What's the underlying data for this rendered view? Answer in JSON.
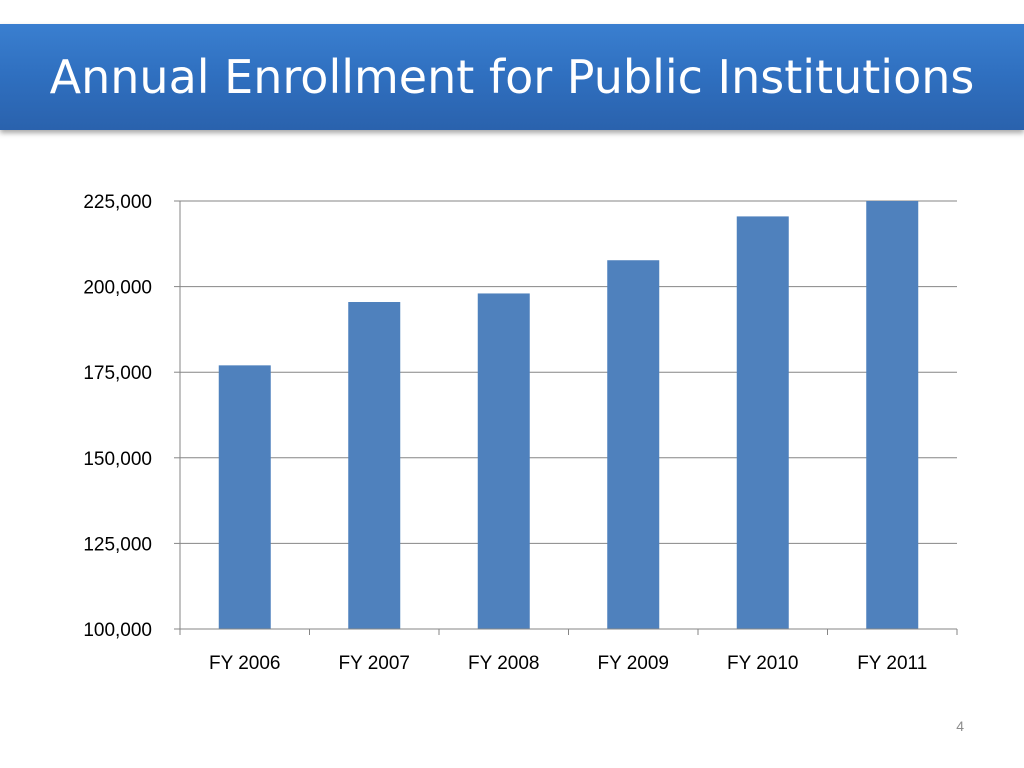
{
  "slide": {
    "title": "Annual Enrollment for Public Institutions",
    "page_number": "4"
  },
  "colors": {
    "banner": "#2f6fbf",
    "bar": "#4f81bd",
    "grid": "#868686",
    "text": "#000000"
  },
  "chart_data": {
    "type": "bar",
    "title": "",
    "xlabel": "",
    "ylabel": "",
    "categories": [
      "FY 2006",
      "FY 2007",
      "FY 2008",
      "FY 2009",
      "FY 2010",
      "FY 2011"
    ],
    "values": [
      177000,
      195500,
      198000,
      207700,
      220500,
      225000
    ],
    "ylim": [
      100000,
      225000
    ],
    "yticks": [
      100000,
      125000,
      150000,
      175000,
      200000,
      225000
    ],
    "ytick_labels": [
      "100,000",
      "125,000",
      "150,000",
      "175,000",
      "200,000",
      "225,000"
    ],
    "grid": true,
    "legend": "none"
  }
}
